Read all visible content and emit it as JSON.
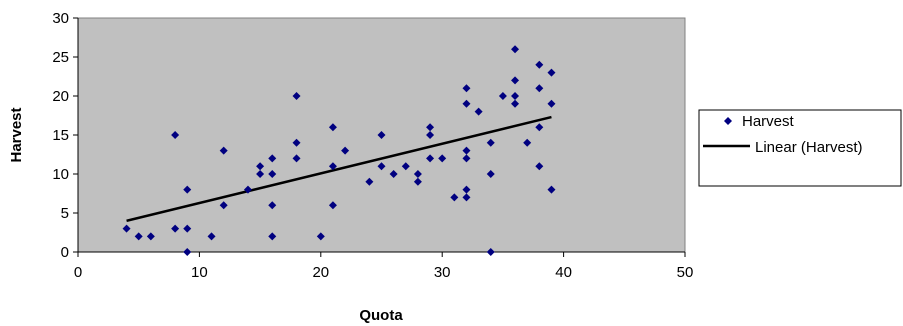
{
  "chart_data": {
    "type": "scatter",
    "title": "",
    "xlabel": "Quota",
    "ylabel": "Harvest",
    "xlim": [
      0,
      50
    ],
    "ylim": [
      0,
      30
    ],
    "x_ticks": [
      "0",
      "10",
      "20",
      "30",
      "40",
      "50"
    ],
    "y_ticks": [
      "0",
      "5",
      "10",
      "15",
      "20",
      "25",
      "30"
    ],
    "grid": false,
    "plot_background": "#c0c0c0",
    "legend_position": "right",
    "series": [
      {
        "name": "Harvest",
        "marker": "diamond",
        "color": "#000080",
        "points": [
          [
            4,
            3
          ],
          [
            5,
            2
          ],
          [
            6,
            2
          ],
          [
            8,
            15
          ],
          [
            8,
            3
          ],
          [
            9,
            8
          ],
          [
            9,
            3
          ],
          [
            9,
            0
          ],
          [
            11,
            2
          ],
          [
            12,
            13
          ],
          [
            12,
            6
          ],
          [
            14,
            8
          ],
          [
            15,
            11
          ],
          [
            15,
            10
          ],
          [
            16,
            12
          ],
          [
            16,
            10
          ],
          [
            16,
            6
          ],
          [
            16,
            2
          ],
          [
            18,
            20
          ],
          [
            18,
            14
          ],
          [
            18,
            12
          ],
          [
            20,
            2
          ],
          [
            21,
            16
          ],
          [
            21,
            11
          ],
          [
            21,
            6
          ],
          [
            22,
            13
          ],
          [
            24,
            9
          ],
          [
            25,
            15
          ],
          [
            25,
            11
          ],
          [
            26,
            10
          ],
          [
            27,
            11
          ],
          [
            28,
            10
          ],
          [
            28,
            9
          ],
          [
            29,
            16
          ],
          [
            29,
            15
          ],
          [
            29,
            12
          ],
          [
            30,
            12
          ],
          [
            31,
            7
          ],
          [
            32,
            21
          ],
          [
            32,
            19
          ],
          [
            32,
            13
          ],
          [
            32,
            12
          ],
          [
            32,
            8
          ],
          [
            32,
            7
          ],
          [
            33,
            18
          ],
          [
            34,
            14
          ],
          [
            34,
            10
          ],
          [
            34,
            0
          ],
          [
            35,
            20
          ],
          [
            36,
            26
          ],
          [
            36,
            22
          ],
          [
            36,
            20
          ],
          [
            36,
            19
          ],
          [
            37,
            14
          ],
          [
            38,
            24
          ],
          [
            38,
            21
          ],
          [
            38,
            16
          ],
          [
            38,
            11
          ],
          [
            39,
            23
          ],
          [
            39,
            19
          ],
          [
            39,
            8
          ]
        ]
      },
      {
        "name": "Linear (Harvest)",
        "type": "line",
        "color": "#000000",
        "points": [
          [
            4,
            4.0
          ],
          [
            39,
            17.3
          ]
        ]
      }
    ]
  }
}
